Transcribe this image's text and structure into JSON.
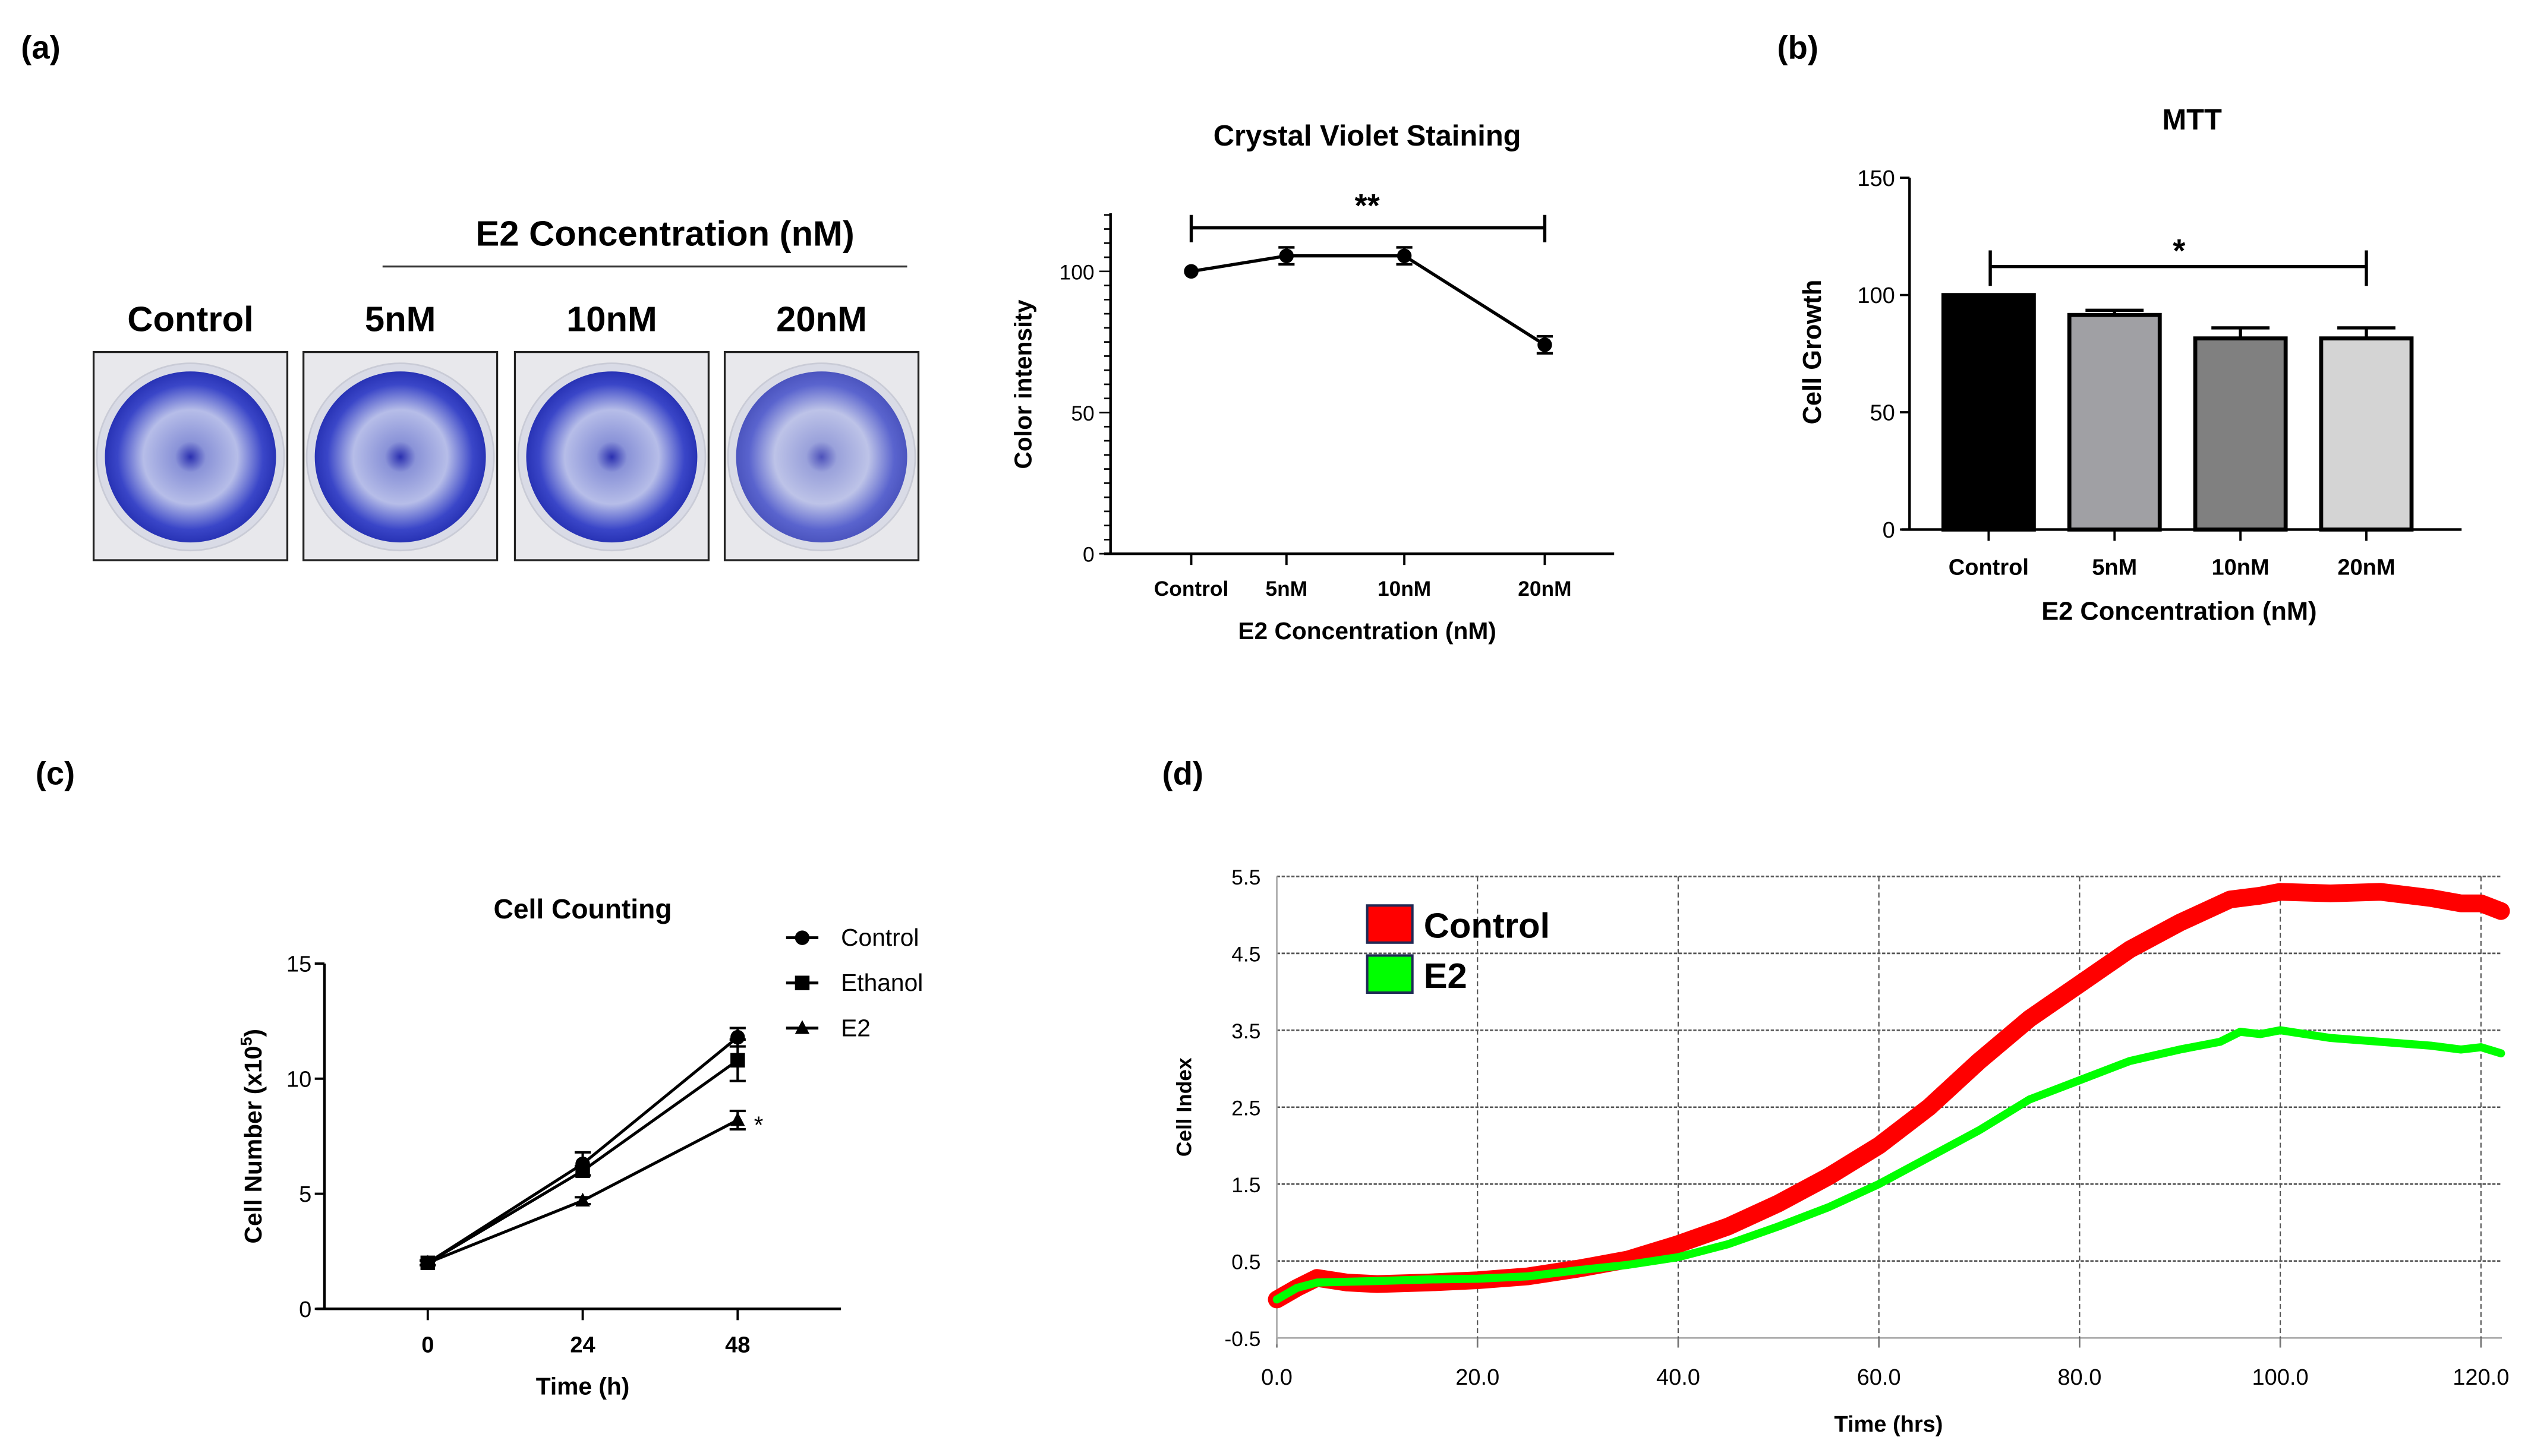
{
  "panel_labels": {
    "a": "(a)",
    "b": "(b)",
    "c": "(c)",
    "d": "(d)"
  },
  "photo_panel": {
    "header": "E2 Concentration (nM)",
    "wells": [
      "Control",
      "5nM",
      "10nM",
      "20nM"
    ]
  },
  "chart_data": [
    {
      "id": "crystal_violet",
      "type": "line",
      "title": "Crystal Violet Staining",
      "xlabel": "E2 Concentration (nM)",
      "ylabel": "Color intensity",
      "categories": [
        "Control",
        "5nM",
        "10nM",
        "20nM"
      ],
      "values": [
        100,
        105.5,
        105.5,
        74
      ],
      "errors": [
        0,
        3,
        3,
        3
      ],
      "ylim": [
        0,
        120
      ],
      "yticks": [
        "0",
        "50",
        "100"
      ],
      "significance": {
        "from": "Control",
        "to": "20nM",
        "label": "**",
        "y": 115
      }
    },
    {
      "id": "mtt",
      "type": "bar",
      "title": "MTT",
      "xlabel": "E2 Concentration (nM)",
      "ylabel": "Cell Growth",
      "categories": [
        "Control",
        "5nM",
        "10nM",
        "20nM"
      ],
      "values": [
        100,
        91.5,
        81.5,
        81.5
      ],
      "errors": [
        0,
        2,
        4.5,
        4.5
      ],
      "colors": [
        "#000000",
        "#a0a0a4",
        "#808080",
        "#d4d4d4"
      ],
      "ylim": [
        0,
        150
      ],
      "yticks": [
        "0",
        "50",
        "100",
        "150"
      ],
      "significance": {
        "from": "Control",
        "to": "20nM",
        "label": "*",
        "y": 112
      }
    },
    {
      "id": "cell_counting",
      "type": "line",
      "title": "Cell Counting",
      "xlabel": "Time (h)",
      "ylabel": "Cell Number (x10",
      "ylabel_sup": "5",
      "ylabel_end": ")",
      "x": [
        0,
        24,
        48
      ],
      "xticks": [
        "0",
        "24",
        "48"
      ],
      "ylim": [
        0,
        15
      ],
      "yticks": [
        "0",
        "5",
        "10",
        "15"
      ],
      "series": [
        {
          "name": "Control",
          "marker": "circle",
          "values": [
            2,
            6.3,
            11.8
          ],
          "errors": [
            0.1,
            0.5,
            0.4
          ]
        },
        {
          "name": "Ethanol",
          "marker": "square",
          "values": [
            2,
            6.0,
            10.8
          ],
          "errors": [
            0.1,
            0.2,
            0.9
          ]
        },
        {
          "name": "E2",
          "marker": "triangle",
          "values": [
            2,
            4.7,
            8.2
          ],
          "errors": [
            0.1,
            0.15,
            0.4
          ]
        }
      ],
      "annotation": "*",
      "legend": "top-right"
    },
    {
      "id": "cell_index",
      "type": "line",
      "title": "",
      "xlabel": "Time (hrs)",
      "ylabel": "Cell Index",
      "xlim": [
        0,
        122
      ],
      "ylim": [
        -0.5,
        5.5
      ],
      "xticks": [
        "0.0",
        "20.0",
        "40.0",
        "60.0",
        "80.0",
        "100.0",
        "120.0"
      ],
      "yticks": [
        "-0.5",
        "0.5",
        "1.5",
        "2.5",
        "3.5",
        "4.5",
        "5.5"
      ],
      "grid": true,
      "legend": "top-left",
      "series": [
        {
          "name": "Control",
          "color": "#ff0000",
          "x": [
            0,
            2,
            4,
            7,
            10,
            15,
            20,
            25,
            30,
            35,
            40,
            45,
            50,
            55,
            60,
            65,
            70,
            75,
            80,
            85,
            90,
            95,
            98,
            100,
            105,
            110,
            115,
            118,
            120,
            122
          ],
          "y": [
            0,
            0.15,
            0.28,
            0.22,
            0.2,
            0.22,
            0.25,
            0.3,
            0.4,
            0.52,
            0.72,
            0.95,
            1.25,
            1.6,
            2.0,
            2.5,
            3.1,
            3.65,
            4.1,
            4.55,
            4.9,
            5.2,
            5.25,
            5.3,
            5.28,
            5.3,
            5.22,
            5.15,
            5.15,
            5.05
          ]
        },
        {
          "name": "E2",
          "color": "#00ff00",
          "x": [
            0,
            2,
            4,
            10,
            15,
            20,
            25,
            30,
            35,
            40,
            45,
            50,
            55,
            60,
            65,
            70,
            75,
            80,
            85,
            90,
            94,
            96,
            98,
            100,
            105,
            110,
            115,
            118,
            120,
            122
          ],
          "y": [
            0,
            0.15,
            0.22,
            0.24,
            0.26,
            0.27,
            0.3,
            0.38,
            0.45,
            0.55,
            0.72,
            0.95,
            1.2,
            1.5,
            1.85,
            2.2,
            2.6,
            2.85,
            3.1,
            3.25,
            3.35,
            3.48,
            3.45,
            3.5,
            3.4,
            3.35,
            3.3,
            3.25,
            3.28,
            3.2
          ]
        }
      ]
    }
  ]
}
